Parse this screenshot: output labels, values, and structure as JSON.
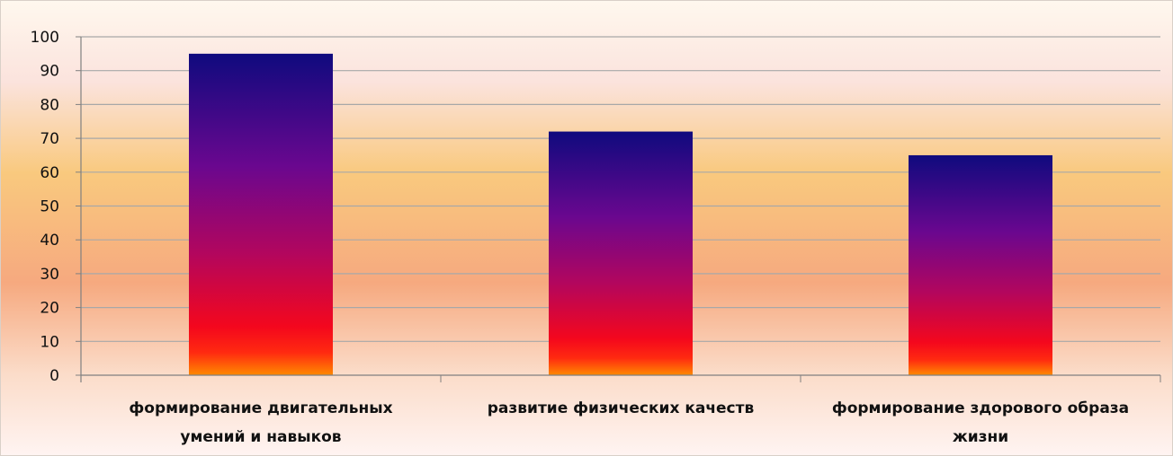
{
  "chart_data": {
    "type": "bar",
    "title": "",
    "xlabel": "",
    "ylabel": "",
    "categories": [
      [
        "формирование  двигательных",
        "умений и навыков"
      ],
      [
        "развитие  физических  качеств"
      ],
      [
        "формирование  здорового образа",
        "жизни"
      ]
    ],
    "values": [
      95,
      72,
      65
    ],
    "ylim": [
      0,
      100
    ],
    "yticks": [
      0,
      10,
      20,
      30,
      40,
      50,
      60,
      70,
      80,
      90,
      100
    ],
    "grid": true,
    "legend": "none"
  },
  "colors": {
    "bar_top": "#120a7d",
    "bar_mid": "#7a0a8c",
    "bar_low": "#f20d1a",
    "bar_base": "#ff7a00",
    "grid": "#a8a8a8",
    "axis": "#808080",
    "bg_top": "#fff6e8",
    "bg_mid": "#f7c985",
    "bg_low": "#f7a882",
    "bg_bottom": "#fff2ee"
  }
}
